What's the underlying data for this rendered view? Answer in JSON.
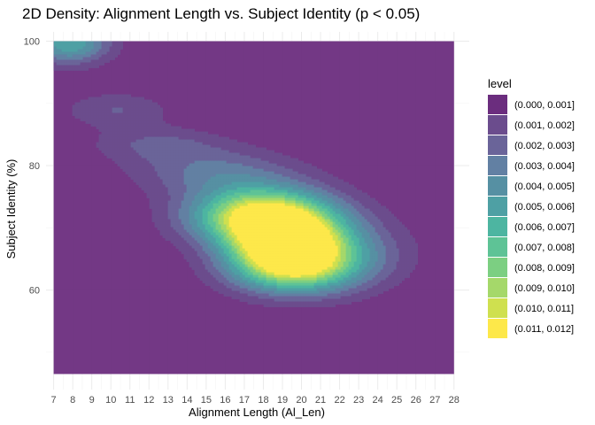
{
  "chart_data": {
    "type": "density2d_filled",
    "title": "2D Density: Alignment Length vs. Subject Identity (p < 0.05)",
    "xlabel": "Alignment Length (Al_Len)",
    "ylabel": "Subject Identity (%)",
    "x_ticks": [
      7,
      8,
      9,
      10,
      11,
      12,
      13,
      14,
      15,
      16,
      17,
      18,
      19,
      20,
      21,
      22,
      23,
      24,
      25,
      26,
      27,
      28
    ],
    "y_ticks": [
      60,
      80,
      100
    ],
    "xlim": [
      6.6,
      28.8
    ],
    "ylim": [
      44,
      101.5
    ],
    "grid": true,
    "background_region": {
      "x": [
        7,
        28
      ],
      "y": [
        46.5,
        100
      ]
    },
    "legend": {
      "title": "level",
      "placement": "right",
      "levels": [
        {
          "label": "(0.000, 0.001]",
          "color": "#6b2d7e"
        },
        {
          "label": "(0.001, 0.002]",
          "color": "#6b4c8d"
        },
        {
          "label": "(0.002, 0.003]",
          "color": "#6a6499"
        },
        {
          "label": "(0.003, 0.004]",
          "color": "#6280a3"
        },
        {
          "label": "(0.004, 0.005]",
          "color": "#5690a3"
        },
        {
          "label": "(0.005, 0.006]",
          "color": "#4ea0a4"
        },
        {
          "label": "(0.006, 0.007]",
          "color": "#4db5a1"
        },
        {
          "label": "(0.007, 0.008]",
          "color": "#5ec396"
        },
        {
          "label": "(0.008, 0.009]",
          "color": "#7ccf82"
        },
        {
          "label": "(0.009, 0.010]",
          "color": "#a5d86a"
        },
        {
          "label": "(0.010, 0.011]",
          "color": "#cfe04f"
        },
        {
          "label": "(0.011, 0.012]",
          "color": "#fde84a"
        }
      ]
    },
    "density_peaks": [
      {
        "cx": 7.8,
        "cy": 99.8,
        "sx": 1.5,
        "sy": 2.4,
        "peak_level": 6
      },
      {
        "cx": 10.3,
        "cy": 89,
        "sx": 2.0,
        "sy": 2.0,
        "peak_level": 2
      },
      {
        "cx": 12.5,
        "cy": 83.5,
        "sx": 2.5,
        "sy": 2.0,
        "peak_level": 2
      },
      {
        "cx": 15.5,
        "cy": 79,
        "sx": 3.0,
        "sy": 2.7,
        "peak_level": 3
      },
      {
        "cx": 18,
        "cy": 72,
        "sx": 2.6,
        "sy": 3.2,
        "peak_level": 12
      },
      {
        "cx": 19.2,
        "cy": 68,
        "sx": 2.0,
        "sy": 2.8,
        "peak_level": 9
      },
      {
        "cx": 19.5,
        "cy": 63.8,
        "sx": 2.3,
        "sy": 3.0,
        "peak_level": 10
      },
      {
        "cx": 22,
        "cy": 66,
        "sx": 2.6,
        "sy": 4.0,
        "peak_level": 3
      }
    ]
  }
}
